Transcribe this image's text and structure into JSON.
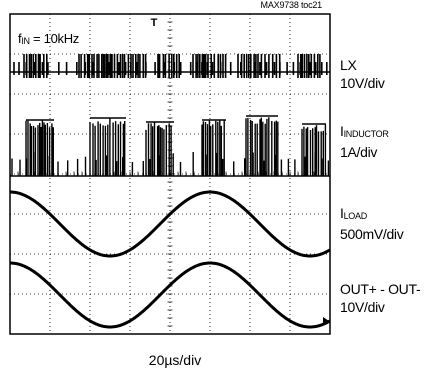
{
  "figure_id": "MAX9738 toc21",
  "input_frequency": {
    "label_main": "f",
    "label_sub": "IN",
    "label_rest": " = 10kHz"
  },
  "channels": [
    {
      "name_main": "LX",
      "name_sub": "",
      "scale": "10V/div"
    },
    {
      "name_main": "I",
      "name_sub": "INDUCTOR",
      "scale": "1A/div"
    },
    {
      "name_main": "I",
      "name_sub": "LOAD",
      "scale": "500mV/div"
    },
    {
      "name_main": "OUT+ - OUT-",
      "name_sub": "",
      "scale": "10V/div"
    }
  ],
  "timebase": "20µs/div",
  "trigger_marker": "T",
  "chart_data": {
    "type": "line",
    "title": "",
    "xlabel": "20µs/div",
    "ylabel": "",
    "grid": true,
    "divisions": {
      "x": 8,
      "y": 8
    },
    "x_range_us": [
      0,
      160
    ],
    "series": [
      {
        "name": "LX",
        "scale": "10V/div",
        "kind": "switching",
        "description": "PWM switching bursts",
        "burst_centers_us": [
          13,
          43,
          57,
          80,
          100,
          125,
          150
        ]
      },
      {
        "name": "INDUCTOR",
        "scale": "1A/div",
        "kind": "switching-envelope",
        "description": "inductor current ripple bursts"
      },
      {
        "name": "LOAD",
        "scale": "500mV/div",
        "kind": "sine",
        "frequency_khz": 10,
        "amplitude_div": 0.8,
        "phase_deg": 90
      },
      {
        "name": "OUT+ - OUT-",
        "scale": "10V/div",
        "kind": "sine",
        "frequency_khz": 10,
        "amplitude_div": 0.8,
        "phase_deg": 90
      }
    ]
  }
}
